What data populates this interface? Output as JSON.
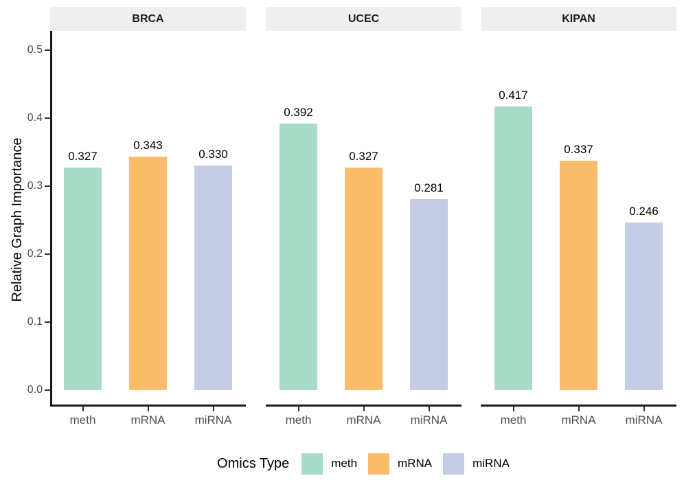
{
  "chart_data": {
    "type": "bar",
    "title": "",
    "xlabel": "",
    "ylabel": "Relative Graph Importance",
    "facets": [
      {
        "name": "BRCA",
        "values": [
          0.327,
          0.343,
          0.33
        ]
      },
      {
        "name": "UCEC",
        "values": [
          0.392,
          0.327,
          0.281
        ]
      },
      {
        "name": "KIPAN",
        "values": [
          0.417,
          0.337,
          0.246
        ]
      }
    ],
    "categories": [
      "meth",
      "mRNA",
      "miRNA"
    ],
    "colors": [
      "#A8DBC8",
      "#FBBC6C",
      "#C5CCE5"
    ],
    "y_ticks": [
      0.0,
      0.1,
      0.2,
      0.3,
      0.4,
      0.5
    ],
    "ylim": [
      0,
      0.53
    ],
    "grid": false,
    "bar_value_labels": true,
    "value_label_decimals": 3,
    "legend": {
      "title": "Omics Type",
      "entries": [
        "meth",
        "mRNA",
        "miRNA"
      ],
      "position": "bottom"
    }
  }
}
